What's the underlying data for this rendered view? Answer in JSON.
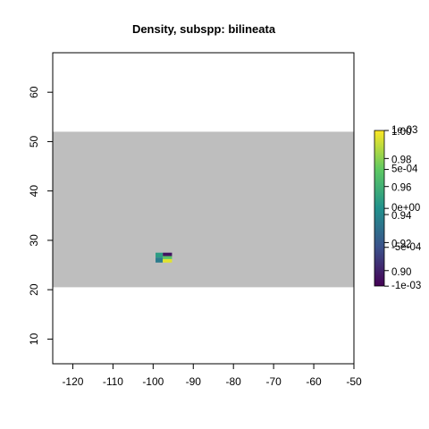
{
  "chart_data": {
    "type": "heatmap",
    "title": "Density, subspp: bilineata",
    "xlabel": "",
    "ylabel": "",
    "xlim": [
      -125,
      -50
    ],
    "ylim": [
      5,
      68
    ],
    "x_ticks": [
      -120,
      -110,
      -100,
      -90,
      -80,
      -70,
      -60,
      -50
    ],
    "y_ticks": [
      10,
      20,
      30,
      40,
      50,
      60
    ],
    "grid": false,
    "background_band": {
      "y_range": [
        20.5,
        52
      ],
      "color": "#bebebe"
    },
    "cells": [
      {
        "x0": -97.6,
        "x1": -95.3,
        "y0": 26.8,
        "y1": 27.5,
        "value": 0.895
      },
      {
        "x0": -99.4,
        "x1": -97.6,
        "y0": 26.5,
        "y1": 27.5,
        "value": 0.95
      },
      {
        "x0": -97.6,
        "x1": -95.3,
        "y0": 26.2,
        "y1": 26.8,
        "value": 0.97
      },
      {
        "x0": -99.4,
        "x1": -97.6,
        "y0": 25.5,
        "y1": 26.5,
        "value": 0.935
      },
      {
        "x0": -97.6,
        "x1": -95.3,
        "y0": 25.5,
        "y1": 26.2,
        "value": 0.995
      }
    ],
    "colorbar": {
      "colormap": "viridis",
      "range": [
        0.889,
        1.0
      ],
      "ticks_right": [
        {
          "label": "1e-03",
          "value": 1.0
        },
        {
          "label": "5e-04",
          "value": 0.9722
        },
        {
          "label": "0e+00",
          "value": 0.9444
        },
        {
          "label": "-5e-04",
          "value": 0.9166
        },
        {
          "label": "-1e-03",
          "value": 0.8889
        }
      ],
      "ticks_left": [
        {
          "label": "1.00",
          "value": 1.0
        },
        {
          "label": "0.98",
          "value": 0.98
        },
        {
          "label": "0.96",
          "value": 0.96
        },
        {
          "label": "0.94",
          "value": 0.94
        },
        {
          "label": "0.92",
          "value": 0.92
        },
        {
          "label": "0.90",
          "value": 0.9
        }
      ]
    }
  }
}
